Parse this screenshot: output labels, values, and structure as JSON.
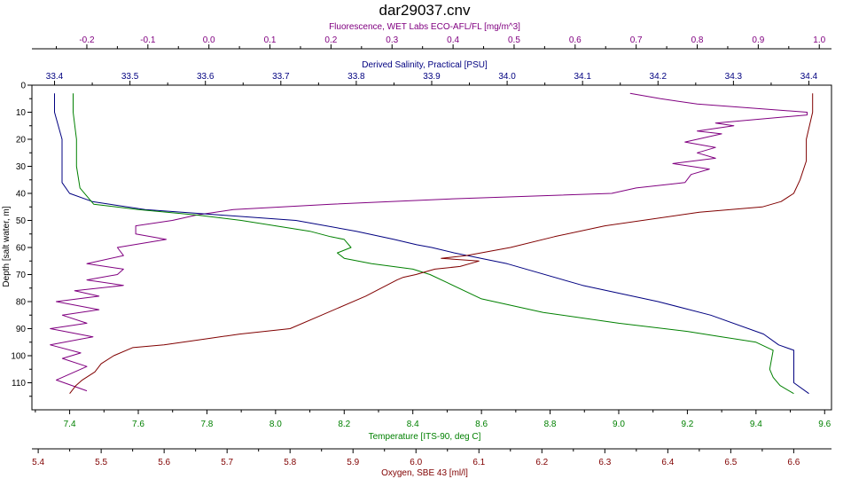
{
  "chart_data": {
    "type": "line",
    "title": "dar29037.cnv",
    "grid": false,
    "legend": "none",
    "y_axis": {
      "label": "Depth [salt water, m]",
      "range": [
        0,
        120
      ],
      "ticks": [
        "0",
        "10",
        "20",
        "30",
        "40",
        "50",
        "60",
        "70",
        "80",
        "90",
        "100",
        "110"
      ]
    },
    "x_axes": [
      {
        "id": "fluorescence",
        "label": "Fluorescence, WET Labs ECO-AFL/FL [mg/m^3]",
        "position": "top-outer",
        "color": "#800080",
        "range": [
          -0.29,
          1.02
        ],
        "ticks": [
          "-0.2",
          "-0.1",
          "0.0",
          "0.1",
          "0.2",
          "0.3",
          "0.4",
          "0.5",
          "0.6",
          "0.7",
          "0.8",
          "0.9",
          "1.0"
        ]
      },
      {
        "id": "salinity",
        "label": "Derived Salinity, Practical [PSU]",
        "position": "top-inner",
        "color": "#000080",
        "range": [
          33.37,
          34.43
        ],
        "ticks": [
          "33.4",
          "33.5",
          "33.6",
          "33.7",
          "33.8",
          "33.9",
          "34.0",
          "34.1",
          "34.2",
          "34.3",
          "34.4"
        ]
      },
      {
        "id": "temperature",
        "label": "Temperature [ITS-90, deg C]",
        "position": "bottom-inner",
        "color": "#008000",
        "range": [
          7.29,
          9.62
        ],
        "ticks": [
          "7.4",
          "7.6",
          "7.8",
          "8.0",
          "8.2",
          "8.4",
          "8.6",
          "8.8",
          "9.0",
          "9.2",
          "9.4",
          "9.6"
        ]
      },
      {
        "id": "oxygen",
        "label": "Oxygen, SBE 43 [ml/l]",
        "position": "bottom-outer",
        "color": "#800000",
        "range": [
          5.39,
          6.66
        ],
        "ticks": [
          "5.4",
          "5.5",
          "5.6",
          "5.7",
          "5.8",
          "5.9",
          "6.0",
          "6.1",
          "6.2",
          "6.3",
          "6.4",
          "6.5",
          "6.6"
        ]
      }
    ],
    "series": [
      {
        "axis": "fluorescence",
        "color": "#800080",
        "x": [
          0.69,
          0.74,
          0.8,
          0.98,
          0.98,
          0.83,
          0.86,
          0.8,
          0.84,
          0.78,
          0.83,
          0.8,
          0.83,
          0.76,
          0.82,
          0.79,
          0.78,
          0.7,
          0.66,
          0.4,
          0.2,
          0.04,
          -0.02,
          -0.06,
          -0.12,
          -0.12,
          -0.07,
          -0.15,
          -0.14,
          -0.2,
          -0.14,
          -0.15,
          -0.2,
          -0.14,
          -0.22,
          -0.18,
          -0.25,
          -0.18,
          -0.24,
          -0.2,
          -0.26,
          -0.19,
          -0.26,
          -0.21,
          -0.24,
          -0.2,
          -0.25,
          -0.2
        ],
        "y": [
          3,
          5,
          7,
          10,
          11,
          14,
          15,
          17,
          18,
          21,
          23,
          25,
          27,
          29,
          31,
          33,
          36,
          38,
          40,
          42,
          44,
          46,
          48,
          50,
          52,
          55,
          57,
          60,
          63,
          66,
          68,
          70,
          72,
          74,
          76,
          78,
          80,
          83,
          85,
          88,
          90,
          93,
          96,
          99,
          101,
          104,
          109,
          113
        ]
      },
      {
        "axis": "salinity",
        "color": "#000080",
        "x": [
          33.4,
          33.4,
          33.41,
          33.41,
          33.41,
          33.42,
          33.45,
          33.52,
          33.62,
          33.72,
          33.8,
          33.85,
          33.88,
          33.9,
          33.93,
          34.0,
          34.1,
          34.2,
          34.27,
          34.34,
          34.36,
          34.38,
          34.38,
          34.4
        ],
        "y": [
          3,
          10,
          20,
          30,
          36,
          40,
          43,
          46,
          48,
          50,
          54,
          57,
          59,
          60,
          62,
          66,
          74,
          80,
          85,
          92,
          96,
          98,
          110,
          114
        ]
      },
      {
        "axis": "temperature",
        "color": "#008000",
        "x": [
          7.41,
          7.41,
          7.42,
          7.42,
          7.43,
          7.47,
          7.6,
          7.77,
          7.9,
          8.0,
          8.1,
          8.16,
          8.2,
          8.22,
          8.18,
          8.2,
          8.28,
          8.4,
          8.45,
          8.5,
          8.6,
          8.78,
          9.0,
          9.2,
          9.3,
          9.4,
          9.45,
          9.44,
          9.45,
          9.47,
          9.51
        ],
        "y": [
          3,
          10,
          20,
          30,
          38,
          44,
          46,
          48,
          50,
          52,
          54,
          56,
          57,
          60,
          62,
          64,
          66,
          68,
          70,
          73,
          79,
          84,
          88,
          91,
          93,
          95,
          98,
          105,
          108,
          111,
          114
        ]
      },
      {
        "axis": "oxygen",
        "color": "#800000",
        "x": [
          6.63,
          6.63,
          6.62,
          6.62,
          6.61,
          6.6,
          6.58,
          6.55,
          6.45,
          6.3,
          6.22,
          6.15,
          6.08,
          6.04,
          6.1,
          6.07,
          6.03,
          6.0,
          5.98,
          5.97,
          5.92,
          5.85,
          5.8,
          5.72,
          5.6,
          5.55,
          5.52,
          5.5,
          5.49,
          5.47,
          5.46,
          5.45
        ],
        "y": [
          3,
          10,
          20,
          28,
          35,
          40,
          43,
          45,
          47,
          52,
          56,
          60,
          63,
          64,
          65,
          67,
          68,
          70,
          71,
          72,
          78,
          85,
          90,
          92,
          96,
          97,
          100,
          103,
          106,
          109,
          111,
          114
        ]
      }
    ]
  }
}
